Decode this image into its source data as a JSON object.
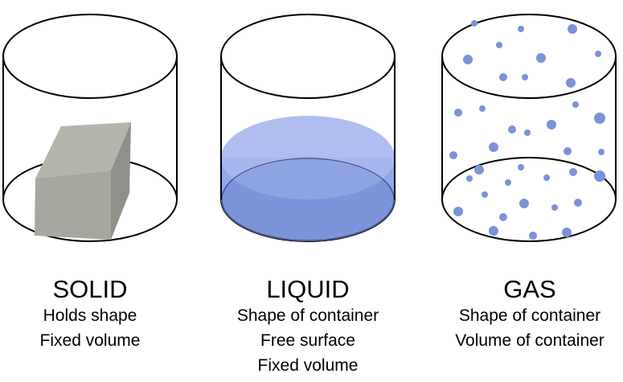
{
  "states": [
    {
      "title": "SOLID",
      "properties": [
        "Holds shape",
        "Fixed volume"
      ],
      "content": "gray block",
      "content_color": "#a6a79f"
    },
    {
      "title": "LIQUID",
      "properties": [
        "Shape of container",
        "Free surface",
        "Fixed volume"
      ],
      "content": "blue liquid",
      "content_color": "#7f9ee2"
    },
    {
      "title": "GAS",
      "properties": [
        "Shape of container",
        "Volume of container"
      ],
      "content": "dots",
      "content_color": "#7b92d8"
    }
  ]
}
